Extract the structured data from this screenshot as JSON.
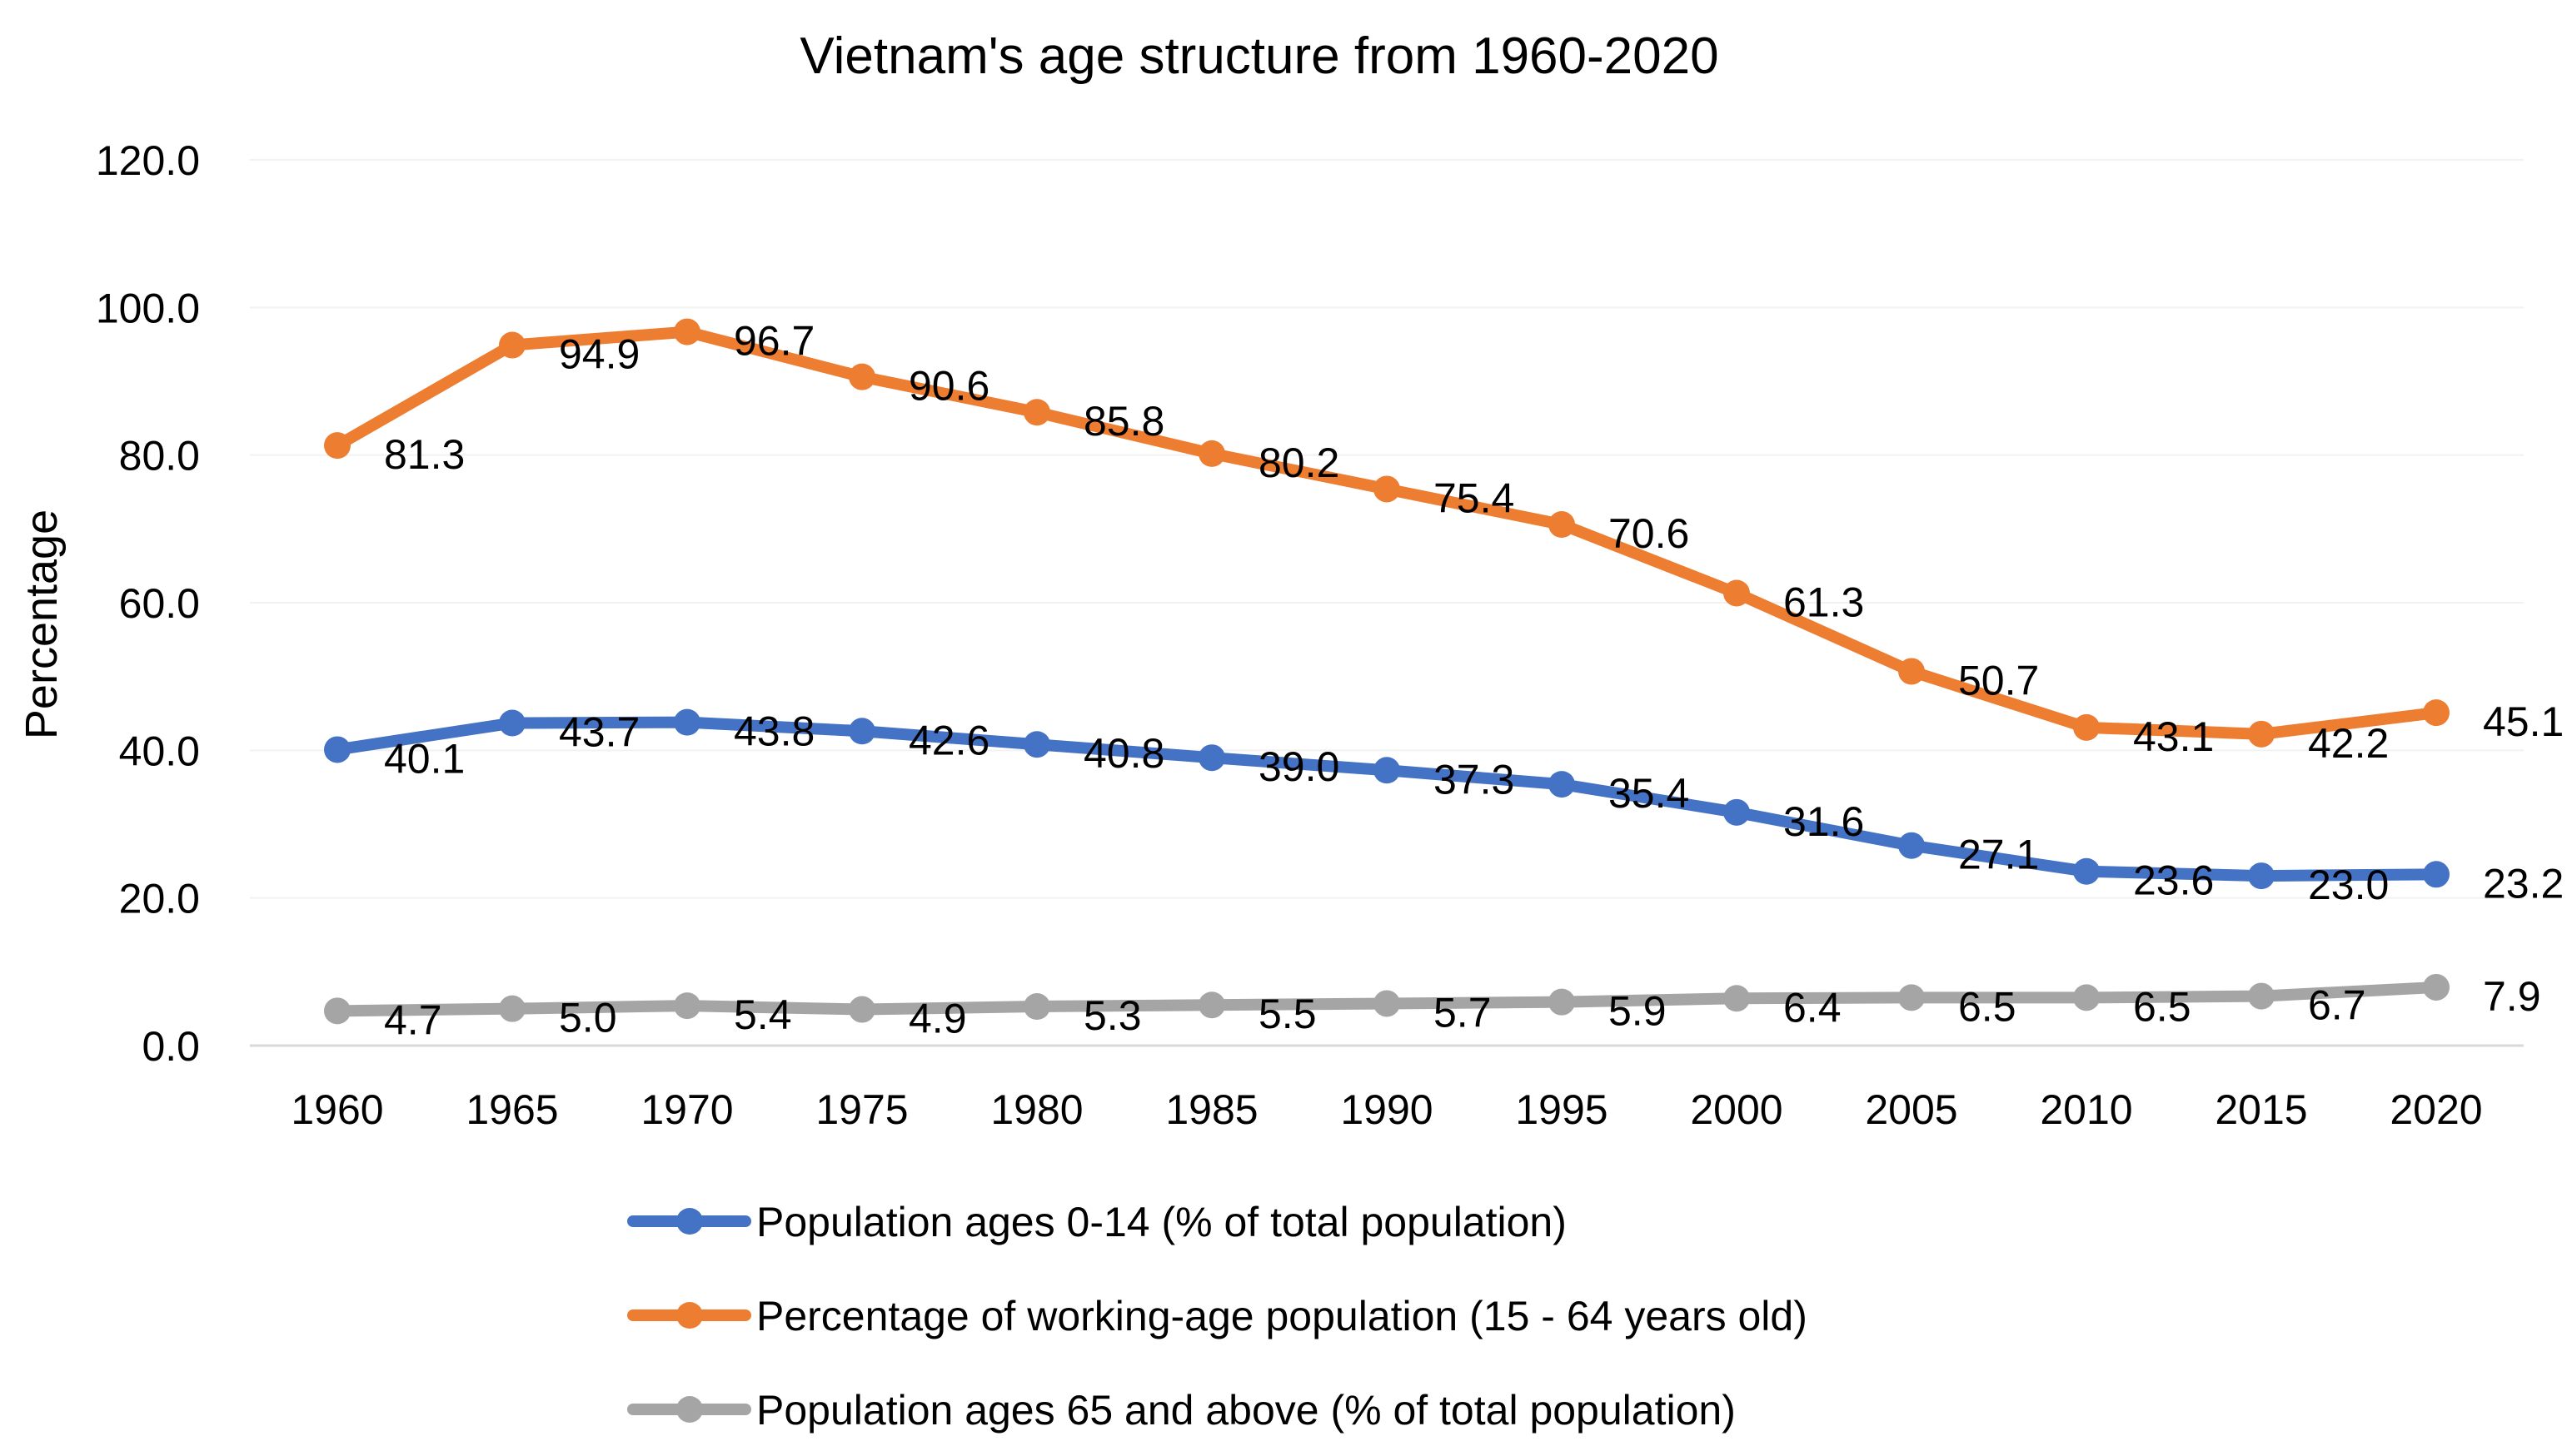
{
  "chart_data": {
    "type": "line",
    "title": "Vietnam's age structure from 1960-2020",
    "xlabel": "",
    "ylabel": "Percentage",
    "ylim": [
      0,
      120
    ],
    "ytick_step": 20,
    "ytick_labels": [
      "0.0",
      "20.0",
      "40.0",
      "60.0",
      "80.0",
      "100.0",
      "120.0"
    ],
    "grid": true,
    "legend_position": "bottom",
    "categories": [
      "1960",
      "1965",
      "1970",
      "1975",
      "1980",
      "1985",
      "1990",
      "1995",
      "2000",
      "2005",
      "2010",
      "2015",
      "2020"
    ],
    "series": [
      {
        "name": "Population ages 0-14 (% of total population)",
        "color": "#4472c4",
        "values": [
          40.1,
          43.7,
          43.8,
          42.6,
          40.8,
          39.0,
          37.3,
          35.4,
          31.6,
          27.1,
          23.6,
          23.0,
          23.2
        ],
        "labels": [
          "40.1",
          "43.7",
          "43.8",
          "42.6",
          "40.8",
          "39.0",
          "37.3",
          "35.4",
          "31.6",
          "27.1",
          "23.6",
          "23.0",
          "23.2"
        ]
      },
      {
        "name": "Percentage of working-age population (15 - 64 years old)",
        "color": "#ed7d31",
        "values": [
          81.3,
          94.9,
          96.7,
          90.6,
          85.8,
          80.2,
          75.4,
          70.6,
          61.3,
          50.7,
          43.1,
          42.2,
          45.1
        ],
        "labels": [
          "81.3",
          "94.9",
          "96.7",
          "90.6",
          "85.8",
          "80.2",
          "75.4",
          "70.6",
          "61.3",
          "50.7",
          "43.1",
          "42.2",
          "45.1"
        ]
      },
      {
        "name": "Population ages 65 and above (% of total population)",
        "color": "#a5a5a5",
        "values": [
          4.7,
          5.0,
          5.4,
          4.9,
          5.3,
          5.5,
          5.7,
          5.9,
          6.4,
          6.5,
          6.5,
          6.7,
          7.9
        ],
        "labels": [
          "4.7",
          "5.0",
          "5.4",
          "4.9",
          "5.3",
          "5.5",
          "5.7",
          "5.9",
          "6.4",
          "6.5",
          "6.5",
          "6.7",
          "7.9"
        ]
      }
    ]
  }
}
